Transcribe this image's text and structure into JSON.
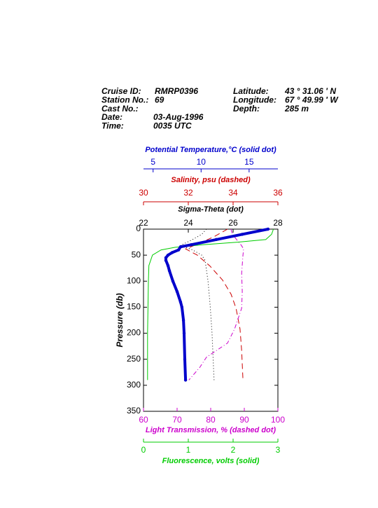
{
  "header": {
    "left": [
      {
        "label": "Cruise ID:",
        "value": "RMRP0396"
      },
      {
        "label": "Station No.:",
        "value": "69"
      },
      {
        "label": "Cast No.:",
        "value": ""
      },
      {
        "label": "Date:",
        "value": "03-Aug-1996"
      },
      {
        "label": "Time:",
        "value": "0035 UTC"
      }
    ],
    "right": [
      {
        "label": "Latitude:",
        "value": "43 ° 31.06 ' N"
      },
      {
        "label": "Longitude:",
        "value": "67 ° 49.99 ' W"
      },
      {
        "label": "Depth:",
        "value": "285 m"
      }
    ]
  },
  "chart_data": {
    "type": "profile",
    "y_label": "Pressure (db)",
    "ylim": [
      0,
      350
    ],
    "yticks": [
      0,
      50,
      100,
      150,
      200,
      250,
      300,
      350
    ],
    "x_axes": [
      {
        "label": "Potential Temperature,°C (solid dot)",
        "color": "#0000cc",
        "side": "top",
        "xlim": [
          4,
          18
        ],
        "xticks": [
          5,
          10,
          15
        ]
      },
      {
        "label": "Salinity, psu  (dashed)",
        "color": "#cc0000",
        "side": "top",
        "xlim": [
          30,
          36
        ],
        "xticks": [
          30,
          32,
          34,
          36
        ]
      },
      {
        "label": "Sigma-Theta (dot)",
        "color": "#000000",
        "side": "top",
        "xlim": [
          22,
          28
        ],
        "xticks": [
          22,
          24,
          26,
          28
        ]
      },
      {
        "label": "Light Transmission, % (dashed dot)",
        "color": "#cc00cc",
        "side": "bottom",
        "xlim": [
          60,
          100
        ],
        "xticks": [
          60,
          70,
          80,
          90,
          100
        ]
      },
      {
        "label": "Fluorescence, volts (solid)",
        "color": "#00cc00",
        "side": "bottom",
        "xlim": [
          0,
          3
        ],
        "xticks": [
          0,
          1,
          2,
          3
        ]
      }
    ],
    "series": [
      {
        "axis": 1,
        "color": "#cc0000",
        "style": "dashed",
        "pressure": [
          0,
          15,
          30,
          38,
          50,
          71,
          98,
          125,
          152,
          192,
          233,
          290
        ],
        "values": [
          33.75,
          33.13,
          32.34,
          31.88,
          32.4,
          32.97,
          33.53,
          33.91,
          34.13,
          34.31,
          34.38,
          34.44
        ]
      },
      {
        "axis": 2,
        "color": "#000000",
        "style": "dotted",
        "pressure": [
          0,
          10,
          20,
          31,
          40,
          50,
          60,
          100,
          150,
          200,
          290
        ],
        "values": [
          24.81,
          24.6,
          24.19,
          23.67,
          24.19,
          24.6,
          24.75,
          24.88,
          24.98,
          25.06,
          25.15
        ]
      },
      {
        "axis": 3,
        "color": "#cc00cc",
        "style": "dashdot",
        "pressure": [
          0,
          10,
          20,
          30,
          38,
          50,
          85,
          120,
          152,
          192,
          219,
          246,
          266,
          290
        ],
        "values": [
          86.0,
          86.5,
          87.7,
          89.0,
          89.8,
          89.6,
          89.2,
          89.4,
          89.2,
          87.1,
          85.0,
          78.75,
          76.7,
          73.5
        ]
      },
      {
        "axis": 4,
        "color": "#00cc00",
        "style": "solid",
        "pressure": [
          0,
          10,
          20,
          25,
          30,
          35,
          40,
          50,
          70,
          100,
          200,
          290
        ],
        "values": [
          2.9,
          2.86,
          2.73,
          2.1,
          1.33,
          0.7,
          0.39,
          0.2,
          0.12,
          0.11,
          0.09,
          0.09
        ]
      },
      {
        "axis": 0,
        "color": "#0000cc",
        "style": "dots",
        "pressure": [
          0,
          10,
          20,
          30,
          34,
          40,
          45,
          50,
          55,
          60,
          70,
          80,
          100,
          120,
          140,
          150,
          175,
          200,
          250,
          290
        ],
        "values": [
          16.98,
          14.28,
          11.58,
          8.96,
          7.86,
          7.65,
          6.99,
          6.55,
          6.33,
          6.33,
          6.55,
          6.7,
          7.06,
          7.5,
          7.86,
          8.0,
          8.16,
          8.23,
          8.3,
          8.38
        ]
      }
    ]
  }
}
